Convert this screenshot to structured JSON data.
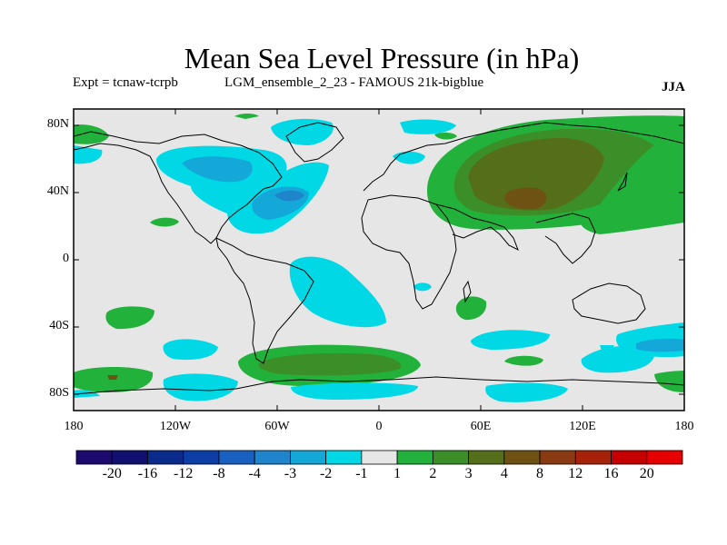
{
  "title": "Mean Sea Level Pressure (in hPa)",
  "experiment": "Expt = tcnaw-tcrpb",
  "run_name": "LGM_ensemble_2_23 - FAMOUS 21k-bigblue",
  "season": "JJA",
  "lat_labels": [
    "80N",
    "40N",
    "0",
    "40S",
    "80S"
  ],
  "lon_labels": [
    "180",
    "120W",
    "60W",
    "0",
    "60E",
    "120E",
    "180"
  ],
  "colorbar": {
    "labels": [
      "-20",
      "-16",
      "-12",
      "-8",
      "-4",
      "-3",
      "-2",
      "-1",
      "1",
      "2",
      "3",
      "4",
      "8",
      "12",
      "16",
      "20"
    ],
    "colors": [
      "#1c0a6e",
      "#101070",
      "#0a2a8c",
      "#0c3ea6",
      "#1a60c0",
      "#1e84cc",
      "#14a8d8",
      "#00d8e6",
      "#e6e6e6",
      "#22b23c",
      "#3c8e28",
      "#546e1a",
      "#6e5214",
      "#8a3a10",
      "#a8220a",
      "#c60000",
      "#e60000"
    ]
  },
  "colors": {
    "background": "#e6e6e6",
    "neg1": "#00d8e6",
    "neg2": "#14a8d8",
    "neg3": "#1e84cc",
    "pos1": "#22b23c",
    "pos2": "#3c8e28",
    "pos3": "#546e1a",
    "pos4": "#6e5214"
  }
}
